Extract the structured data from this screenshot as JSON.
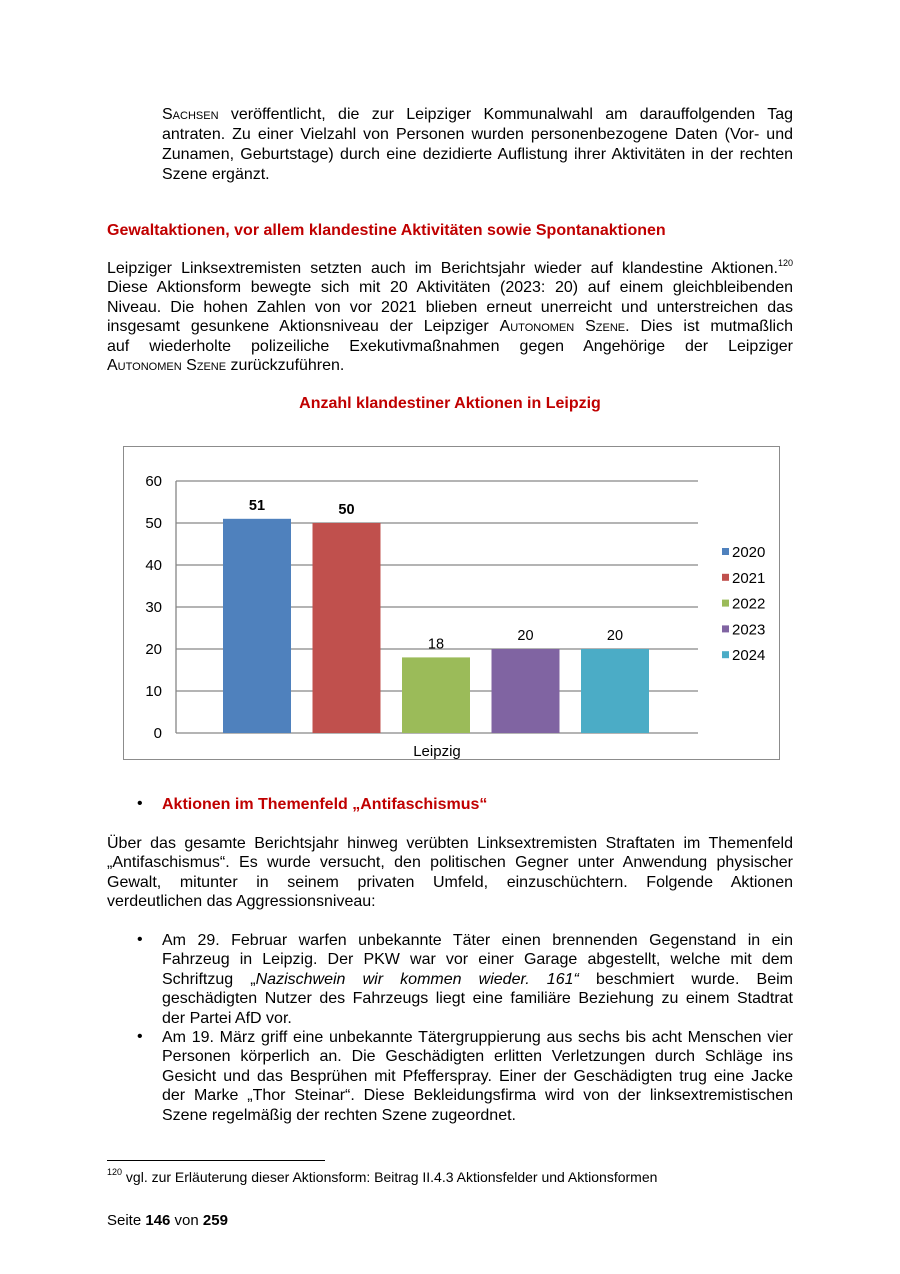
{
  "paragraph_1": [
    [
      {
        "t": "Sachsen",
        "sc": true
      },
      {
        "t": " veröffentlicht, die zur  Leipziger Kommunalwahl am darauffolgenden Tag"
      }
    ],
    [
      {
        "t": "antraten. Zu einer Vielzahl von Personen wurden personenbezogene Daten (Vor- und"
      }
    ],
    [
      {
        "t": "Zunamen, Geburtstage) durch eine dezidierte Auflistung ihrer Aktivitäten in der rechten"
      }
    ],
    [
      {
        "t": "Szene ergänzt."
      }
    ]
  ],
  "heading_1": "Gewaltaktionen, vor allem klandestine Aktivitäten sowie Spontanaktionen",
  "paragraph_2": [
    [
      {
        "t": "Leipziger Linksextremisten setzten auch im Berichtsjahr wieder auf klandestine Aktionen."
      },
      {
        "t": "120",
        "sup": true
      }
    ],
    [
      {
        "t": "Diese Aktionsform bewegte sich mit 20 Aktivitäten (2023: 20) auf einem gleichbleibenden"
      }
    ],
    [
      {
        "t": "Niveau. Die hohen Zahlen von vor 2021 blieben erneut unerreicht und unterstreichen das"
      }
    ],
    [
      {
        "t": "insgesamt gesunkene Aktionsniveau der Leipziger "
      },
      {
        "t": "Autonomen Szene",
        "sc": true
      },
      {
        "t": ". Dies ist mutmaßlich"
      }
    ],
    [
      {
        "t": "auf wiederholte polizeiliche Exekutivmaßnahmen gegen Angehörige der Leipziger"
      }
    ],
    [
      {
        "t": "Autonomen Szene",
        "sc": true
      },
      {
        "t": " zurückzuführen."
      }
    ]
  ],
  "chart_data": {
    "type": "bar",
    "title": "Anzahl klandestiner Aktionen in Leipzig",
    "categories": [
      "Leipzig"
    ],
    "series": [
      {
        "name": "2020",
        "values": [
          51
        ],
        "color": "#4f81bd",
        "label_bold": true
      },
      {
        "name": "2021",
        "values": [
          50
        ],
        "color": "#c0504d",
        "label_bold": true
      },
      {
        "name": "2022",
        "values": [
          18
        ],
        "color": "#9bbb59",
        "label_bold": false
      },
      {
        "name": "2023",
        "values": [
          20
        ],
        "color": "#8064a2",
        "label_bold": false
      },
      {
        "name": "2024",
        "values": [
          20
        ],
        "color": "#4bacc6",
        "label_bold": false
      }
    ],
    "ylim": [
      0,
      60
    ],
    "yticks": [
      0,
      10,
      20,
      30,
      40,
      50,
      60
    ],
    "grid": true,
    "legend": "right"
  },
  "bullet_heading": "Aktionen im Themenfeld „Antifaschismus“",
  "paragraph_3": [
    [
      {
        "t": "Über das gesamte Berichtsjahr hinweg verübten Linksextremisten Straftaten im Themenfeld"
      }
    ],
    [
      {
        "t": "„Antifaschismus“. Es wurde versucht, den politischen Gegner unter Anwendung physischer"
      }
    ],
    [
      {
        "t": "Gewalt, mitunter in seinem privaten Umfeld, einzuschüchtern. Folgende Aktionen"
      }
    ],
    [
      {
        "t": "verdeutlichen das Aggressionsniveau:"
      }
    ]
  ],
  "list_items": [
    [
      [
        {
          "t": "Am 29. Februar warfen unbekannte Täter einen brennenden Gegenstand in ein"
        }
      ],
      [
        {
          "t": "Fahrzeug in Leipzig. Der PKW war vor einer Garage abgestellt, welche mit dem"
        }
      ],
      [
        {
          "t": "Schriftzug „"
        },
        {
          "t": "Nazischwein wir kommen wieder. 161“",
          "it": true
        },
        {
          "t": " beschmiert wurde. Beim"
        }
      ],
      [
        {
          "t": "geschädigten Nutzer des Fahrzeugs liegt eine familiäre Beziehung zu einem Stadtrat"
        }
      ],
      [
        {
          "t": "der Partei AfD vor."
        }
      ]
    ],
    [
      [
        {
          "t": "Am 19. März griff eine unbekannte Tätergruppierung aus sechs bis acht Menschen vier"
        }
      ],
      [
        {
          "t": "Personen körperlich an. Die Geschädigten erlitten Verletzungen durch Schläge ins"
        }
      ],
      [
        {
          "t": "Gesicht und das Besprühen mit Pfefferspray. Einer der Geschädigten trug eine Jacke"
        }
      ],
      [
        {
          "t": "der Marke „Thor Steinar“. Diese Bekleidungsfirma wird von der linksextremistischen"
        }
      ],
      [
        {
          "t": "Szene regelmäßig der rechten Szene zugeordnet."
        }
      ]
    ]
  ],
  "footnote": {
    "number": "120",
    "text": " vgl. zur Erläuterung dieser Aktionsform: Beitrag II.4.3 Aktionsfelder und Aktionsformen"
  },
  "footer": {
    "prefix": "Seite ",
    "page": "146",
    "middle": " von ",
    "total": "259"
  }
}
